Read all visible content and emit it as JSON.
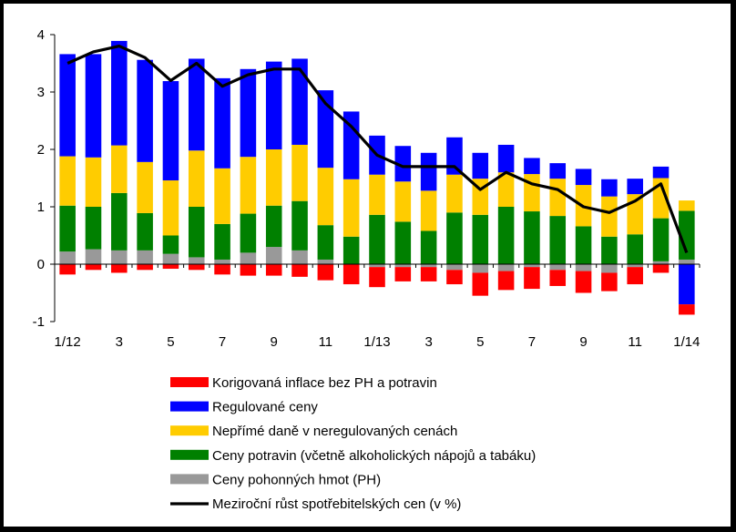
{
  "chart_data": {
    "type": "bar",
    "stacked": true,
    "categories": [
      "1/12",
      "2",
      "3",
      "4",
      "5",
      "6",
      "7",
      "8",
      "9",
      "10",
      "11",
      "12",
      "1/13",
      "2",
      "3",
      "4",
      "5",
      "6",
      "7",
      "8",
      "9",
      "10",
      "11",
      "12",
      "1/14"
    ],
    "x_tick_labels": [
      "1/12",
      "3",
      "5",
      "7",
      "9",
      "11",
      "1/13",
      "3",
      "5",
      "7",
      "9",
      "11",
      "1/14"
    ],
    "y_tick_labels": [
      "-1",
      "0",
      "1",
      "2",
      "3",
      "4"
    ],
    "ylim": [
      -1,
      4
    ],
    "grid": false,
    "legend_position": "bottom",
    "series": [
      {
        "name": "Korigovaná inflace bez PH a potravin",
        "color": "#ff0000",
        "values": [
          -0.18,
          -0.1,
          -0.15,
          -0.1,
          -0.08,
          -0.1,
          -0.18,
          -0.2,
          -0.2,
          -0.22,
          -0.28,
          -0.35,
          -0.35,
          -0.25,
          -0.25,
          -0.25,
          -0.4,
          -0.33,
          -0.38,
          -0.28,
          -0.38,
          -0.32,
          -0.3,
          -0.15,
          -0.18
        ]
      },
      {
        "name": "Regulované ceny",
        "color": "#0000ff",
        "values": [
          1.78,
          1.8,
          1.82,
          1.78,
          1.73,
          1.6,
          1.57,
          1.53,
          1.53,
          1.5,
          1.35,
          1.18,
          0.68,
          0.62,
          0.66,
          0.65,
          0.45,
          0.48,
          0.28,
          0.27,
          0.28,
          0.3,
          0.27,
          0.2,
          -0.7
        ]
      },
      {
        "name": "Nepřímé daně v neregulovaných cenách",
        "color": "#ffcc00",
        "values": [
          0.86,
          0.86,
          0.83,
          0.89,
          0.96,
          0.98,
          0.97,
          0.99,
          0.98,
          0.98,
          1.0,
          1.0,
          0.7,
          0.7,
          0.7,
          0.66,
          0.63,
          0.6,
          0.65,
          0.65,
          0.72,
          0.7,
          0.7,
          0.7,
          0.18
        ]
      },
      {
        "name": "Ceny potravin (včetně alkoholických nápojů a tabáku)",
        "color": "#008000",
        "values": [
          0.8,
          0.74,
          1.0,
          0.65,
          0.32,
          0.88,
          0.62,
          0.68,
          0.72,
          0.86,
          0.6,
          0.48,
          0.86,
          0.74,
          0.58,
          0.9,
          0.86,
          1.0,
          0.92,
          0.84,
          0.66,
          0.48,
          0.52,
          0.75,
          0.85
        ]
      },
      {
        "name": "Ceny pohonných hmot (PH)",
        "color": "#999999",
        "values": [
          0.22,
          0.26,
          0.24,
          0.24,
          0.18,
          0.12,
          0.08,
          0.2,
          0.3,
          0.24,
          0.08,
          0.0,
          -0.05,
          -0.05,
          -0.05,
          -0.1,
          -0.15,
          -0.12,
          -0.05,
          -0.1,
          -0.12,
          -0.15,
          -0.05,
          0.05,
          0.08
        ]
      }
    ],
    "line_series": {
      "name": "Meziroční růst spotřebitelských cen (v %)",
      "color": "#000000",
      "values": [
        3.5,
        3.7,
        3.8,
        3.6,
        3.2,
        3.5,
        3.1,
        3.3,
        3.4,
        3.4,
        2.8,
        2.4,
        1.9,
        1.7,
        1.7,
        1.7,
        1.3,
        1.6,
        1.4,
        1.3,
        1.0,
        0.9,
        1.1,
        1.4,
        0.2
      ]
    }
  }
}
